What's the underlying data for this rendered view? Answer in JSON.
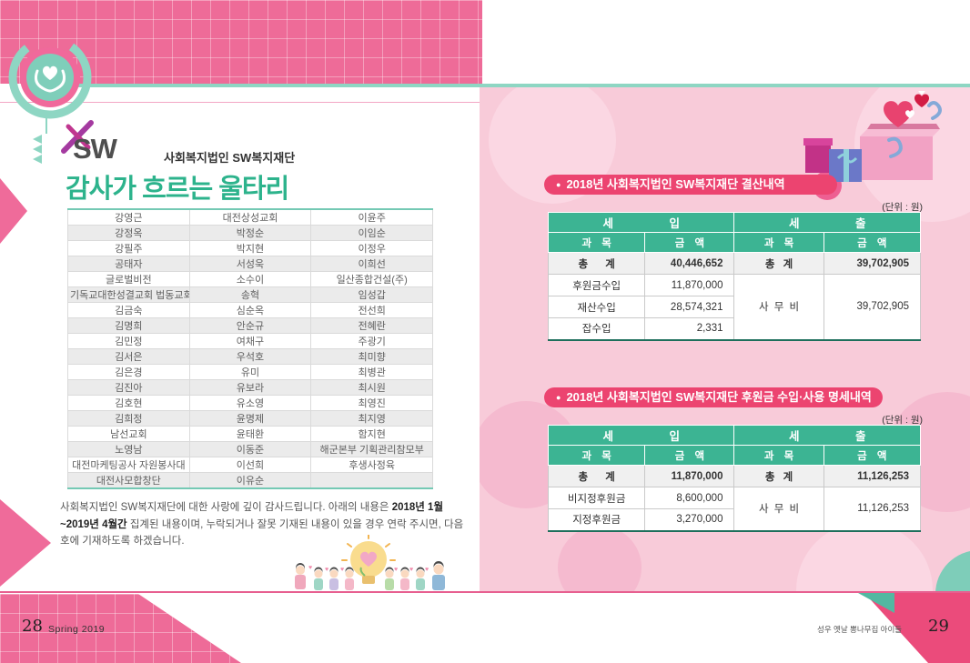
{
  "page_left": {
    "logo_text": "SW",
    "org_name": "사회복지법인 SW복지재단",
    "title": "감사가 흐르는 울타리",
    "donors": {
      "rows": [
        [
          "강영근",
          "대전상성교회",
          "이윤주"
        ],
        [
          "강정옥",
          "박정순",
          "이임순"
        ],
        [
          "강필주",
          "박지현",
          "이정우"
        ],
        [
          "공태자",
          "서성욱",
          "이희선"
        ],
        [
          "글로벌비전",
          "소수이",
          "일산종합건설(주)"
        ],
        [
          "기독교대한성결교회 법동교회",
          "송혁",
          "임성갑"
        ],
        [
          "김금숙",
          "심순옥",
          "전선희"
        ],
        [
          "김명희",
          "안순규",
          "전혜란"
        ],
        [
          "김민정",
          "여채구",
          "주광기"
        ],
        [
          "김서은",
          "우석호",
          "최미향"
        ],
        [
          "김은경",
          "유미",
          "최병관"
        ],
        [
          "김진아",
          "유보라",
          "최시원"
        ],
        [
          "김호현",
          "유소영",
          "최영진"
        ],
        [
          "김희정",
          "윤명제",
          "최지영"
        ],
        [
          "남선교회",
          "윤태환",
          "함지현"
        ],
        [
          "노영남",
          "이동준",
          "해군본부 기획관리참모부"
        ],
        [
          "대전마케팅공사 자원봉사대",
          "이선희",
          "후생사정육"
        ],
        [
          "대전사모합창단",
          "이유순",
          ""
        ]
      ]
    },
    "note": {
      "before_bold": "사회복지법인 SW복지재단에 대한 사랑에 깊이 감사드립니다. 아래의 내용은 ",
      "bold": "2018년 1월~2019년 4월간",
      "after_bold": " 집계된 내용이며, 누락되거나 잘못 기재된 내용이 있을 경우 연락 주시면, 다음 호에 기재하도록 하겠습니다."
    },
    "page_number": "28",
    "issue_label": "Spring 2019"
  },
  "page_right": {
    "settlement": {
      "title": "2018년 사회복지법인 SW복지재단 결산내역",
      "unit_label": "(단위 : 원)",
      "head": {
        "income": "세 입",
        "expense": "세 출",
        "item": "과 목",
        "amount": "금 액"
      },
      "total": {
        "in_label": "총 계",
        "in_amount": "40,446,652",
        "out_label": "총 계",
        "out_amount": "39,702,905"
      },
      "income_rows": [
        {
          "label": "후원금수입",
          "amount": "11,870,000"
        },
        {
          "label": "재산수입",
          "amount": "28,574,321"
        },
        {
          "label": "잡수입",
          "amount": "2,331"
        }
      ],
      "expense_merged": {
        "label": "사 무 비",
        "amount": "39,702,905"
      }
    },
    "donation": {
      "title": "2018년 사회복지법인 SW복지재단 후원금 수입·사용 명세내역",
      "unit_label": "(단위 : 원)",
      "head": {
        "income": "세 입",
        "expense": "세 출",
        "item": "과 목",
        "amount": "금 액"
      },
      "total": {
        "in_label": "총 계",
        "in_amount": "11,870,000",
        "out_label": "총 계",
        "out_amount": "11,126,253"
      },
      "income_rows": [
        {
          "label": "비지정후원금",
          "amount": "8,600,000"
        },
        {
          "label": "지정후원금",
          "amount": "3,270,000"
        }
      ],
      "expense_merged": {
        "label": "사 무 비",
        "amount": "11,126,253"
      }
    },
    "footer_label": "성우 옛날 뽕나무집 아이들",
    "page_number": "29"
  },
  "icons": {
    "bullet": "●",
    "hands_heart": "hands-holding-heart",
    "gift_box": "open-gift-box-with-hearts",
    "children": "children-with-heart-bulb"
  },
  "colors": {
    "band_pink": "#EE6B98",
    "pill_pink": "#EC4470",
    "table_green": "#3CB493",
    "page_pink": "#F8CBD9",
    "teal": "#8ED6C3",
    "title_green": "#2DB38C"
  }
}
